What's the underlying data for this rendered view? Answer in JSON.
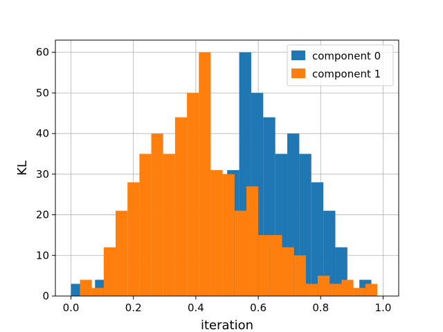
{
  "chart_data": {
    "type": "bar",
    "subtype": "histogram",
    "xlabel": "iteration",
    "ylabel": "KL",
    "xlim": [
      -0.05,
      1.05
    ],
    "ylim": [
      0,
      63
    ],
    "grid": true,
    "legend_position": "top-right",
    "x_ticks": [
      0.0,
      0.2,
      0.4,
      0.6,
      0.8,
      1.0
    ],
    "x_tick_labels": [
      "0.0",
      "0.2",
      "0.4",
      "0.6",
      "0.8",
      "1.0"
    ],
    "y_ticks": [
      0,
      10,
      20,
      30,
      40,
      50,
      60
    ],
    "y_tick_labels": [
      "0",
      "10",
      "20",
      "30",
      "40",
      "50",
      "60"
    ],
    "series": [
      {
        "name": "component 0",
        "color": "#1f77b4",
        "bin_edges": [
          0.0,
          0.0385,
          0.077,
          0.1155,
          0.154,
          0.1925,
          0.231,
          0.2695,
          0.308,
          0.3465,
          0.385,
          0.4235,
          0.462,
          0.5005,
          0.539,
          0.5775,
          0.616,
          0.6545,
          0.693,
          0.7315,
          0.77,
          0.8085,
          0.847,
          0.8855,
          0.924,
          0.9625,
          1.001
        ],
        "counts": [
          3,
          0,
          4,
          0,
          0,
          0,
          0,
          0,
          0,
          0,
          0,
          0,
          0,
          31,
          60,
          50,
          44,
          35,
          40,
          35,
          28,
          21,
          12,
          0,
          4,
          0
        ]
      },
      {
        "name": "component 1",
        "color": "#ff7f0e",
        "bin_edges": [
          0.0287,
          0.0668,
          0.1049,
          0.143,
          0.1811,
          0.2192,
          0.2573,
          0.2954,
          0.3335,
          0.3716,
          0.4097,
          0.4478,
          0.4859,
          0.524,
          0.5621,
          0.6002,
          0.6383,
          0.6764,
          0.7145,
          0.7526,
          0.7907,
          0.8288,
          0.8669,
          0.905,
          0.9431,
          0.9812
        ],
        "counts": [
          4,
          2,
          12,
          21,
          28,
          35,
          40,
          35,
          44,
          50,
          60,
          31,
          30,
          21,
          27,
          15,
          15,
          12,
          10,
          3,
          5,
          3,
          4,
          2,
          3
        ]
      }
    ]
  }
}
